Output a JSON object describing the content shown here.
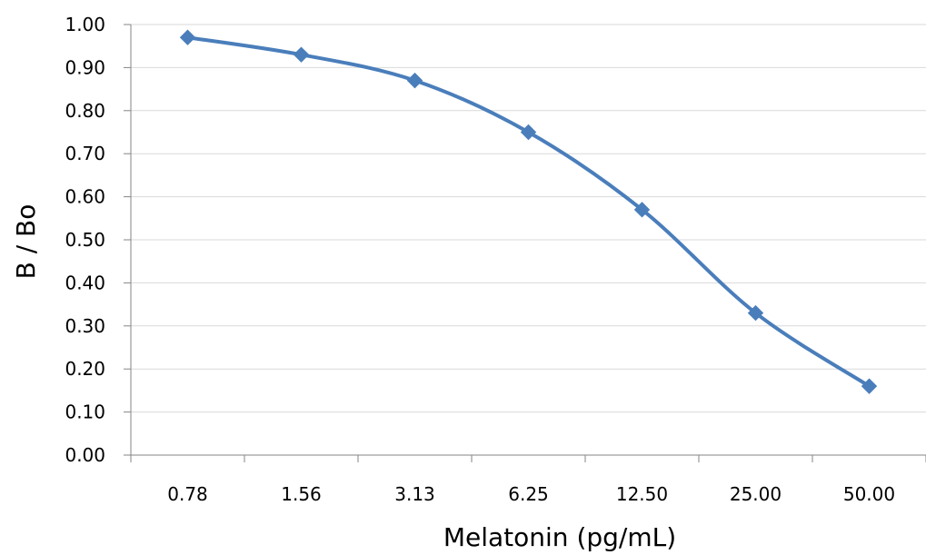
{
  "chart_data": {
    "type": "line",
    "title": "",
    "xlabel": "Melatonin  (pg/mL)",
    "ylabel": "B / Bo",
    "categories": [
      "0.78",
      "1.56",
      "3.13",
      "6.25",
      "12.50",
      "25.00",
      "50.00"
    ],
    "series": [
      {
        "values": [
          0.97,
          0.93,
          0.87,
          0.75,
          0.57,
          0.33,
          0.16
        ]
      }
    ],
    "ylim": [
      0,
      1
    ],
    "yticks": [
      "0.00",
      "0.10",
      "0.20",
      "0.30",
      "0.40",
      "0.50",
      "0.60",
      "0.70",
      "0.80",
      "0.90",
      "1.00"
    ],
    "grid": "horizontal",
    "legend": "none",
    "line_color": "#4a7ebb",
    "marker": "diamond",
    "smooth": true
  }
}
